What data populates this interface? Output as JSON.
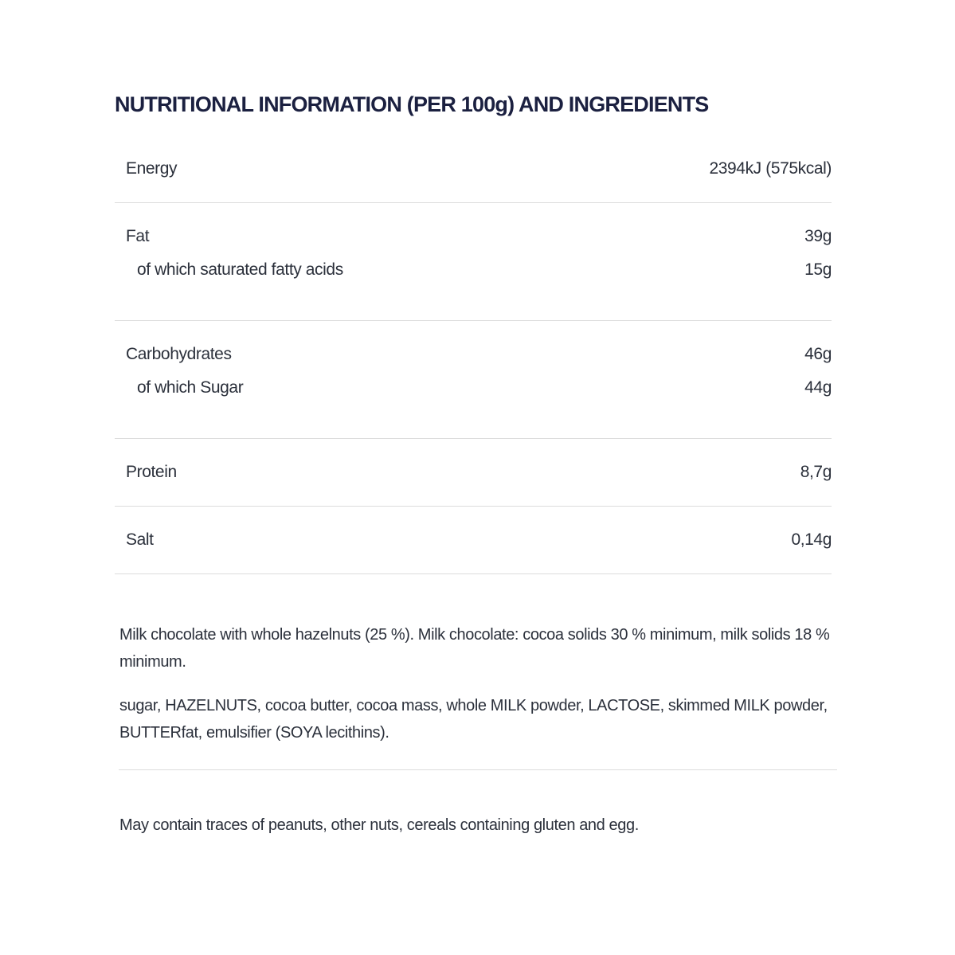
{
  "title": "NUTRITIONAL INFORMATION (PER 100g) AND INGREDIENTS",
  "nutrition": [
    {
      "label": "Energy",
      "value": "2394kJ (575kcal)"
    },
    {
      "label": "Fat",
      "value": "39g"
    },
    {
      "label": "of which saturated fatty acids",
      "value": "15g"
    },
    {
      "label": "Carbohydrates",
      "value": "46g"
    },
    {
      "label": "of which Sugar",
      "value": "44g"
    },
    {
      "label": "Protein",
      "value": "8,7g"
    },
    {
      "label": "Salt",
      "value": "0,14g"
    }
  ],
  "description": "Milk chocolate with whole hazelnuts (25 %). Milk chocolate: cocoa solids 30 % minimum, milk solids 18 % minimum.",
  "ingredients": "sugar, HAZELNUTS, cocoa butter, cocoa mass, whole MILK powder, LACTOSE, skimmed MILK powder, BUTTERfat, emulsifier (SOYA lecithins).",
  "allergens": "May contain traces of peanuts, other nuts, cereals containing gluten and egg."
}
